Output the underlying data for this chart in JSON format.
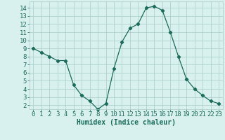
{
  "x": [
    0,
    1,
    2,
    3,
    4,
    5,
    6,
    7,
    8,
    9,
    10,
    11,
    12,
    13,
    14,
    15,
    16,
    17,
    18,
    19,
    20,
    21,
    22,
    23
  ],
  "y": [
    9.0,
    8.5,
    8.0,
    7.5,
    7.5,
    4.5,
    3.2,
    2.5,
    1.5,
    2.2,
    6.5,
    9.8,
    11.5,
    12.0,
    14.0,
    14.2,
    13.7,
    11.0,
    8.0,
    5.2,
    4.0,
    3.2,
    2.5,
    2.2
  ],
  "line_color": "#1a6b5a",
  "marker": "D",
  "marker_size": 2.2,
  "bg_color": "#d8f0ee",
  "grid_color": "#a8ccc8",
  "xlabel": "Humidex (Indice chaleur)",
  "xlim": [
    -0.5,
    23.5
  ],
  "ylim": [
    1.5,
    14.8
  ],
  "xticks": [
    0,
    1,
    2,
    3,
    4,
    5,
    6,
    7,
    8,
    9,
    10,
    11,
    12,
    13,
    14,
    15,
    16,
    17,
    18,
    19,
    20,
    21,
    22,
    23
  ],
  "yticks": [
    2,
    3,
    4,
    5,
    6,
    7,
    8,
    9,
    10,
    11,
    12,
    13,
    14
  ],
  "xlabel_fontsize": 7,
  "tick_fontsize": 6.5,
  "axis_text_color": "#1a6b5a"
}
